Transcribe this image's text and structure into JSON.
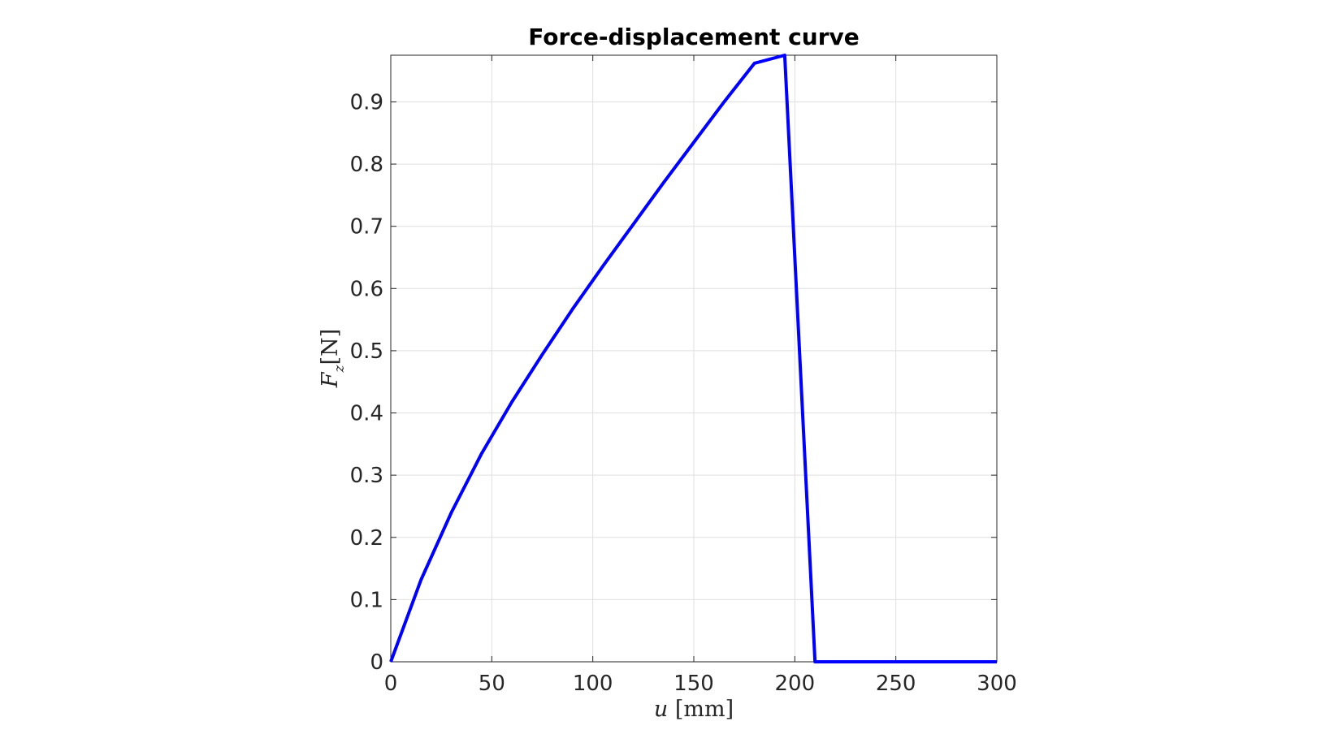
{
  "chart_data": {
    "type": "line",
    "title": "Force-displacement curve",
    "xlabel": {
      "math": "u",
      "unit": "[mm]"
    },
    "ylabel": {
      "math": "F",
      "subscript": "z",
      "unit": "[N]"
    },
    "xlim": [
      0,
      300
    ],
    "ylim": [
      0,
      0.975
    ],
    "xticks": [
      "0",
      "50",
      "100",
      "150",
      "200",
      "250",
      "300"
    ],
    "yticks": [
      "0",
      "0.1",
      "0.2",
      "0.3",
      "0.4",
      "0.5",
      "0.6",
      "0.7",
      "0.8",
      "0.9"
    ],
    "grid": true,
    "series": [
      {
        "color": "#0000ff",
        "x": [
          0,
          15,
          30,
          45,
          60,
          75,
          90,
          105,
          120,
          135,
          150,
          165,
          180,
          195,
          210,
          225,
          240,
          255,
          270,
          285,
          300
        ],
        "y": [
          0,
          0.132,
          0.24,
          0.335,
          0.418,
          0.494,
          0.567,
          0.636,
          0.703,
          0.77,
          0.835,
          0.9,
          0.962,
          0.975,
          0,
          0,
          0,
          0,
          0,
          0,
          0
        ]
      }
    ]
  },
  "colors": {
    "line": "#0000ff",
    "grid": "#dfdfdf",
    "axes": "#262626"
  }
}
